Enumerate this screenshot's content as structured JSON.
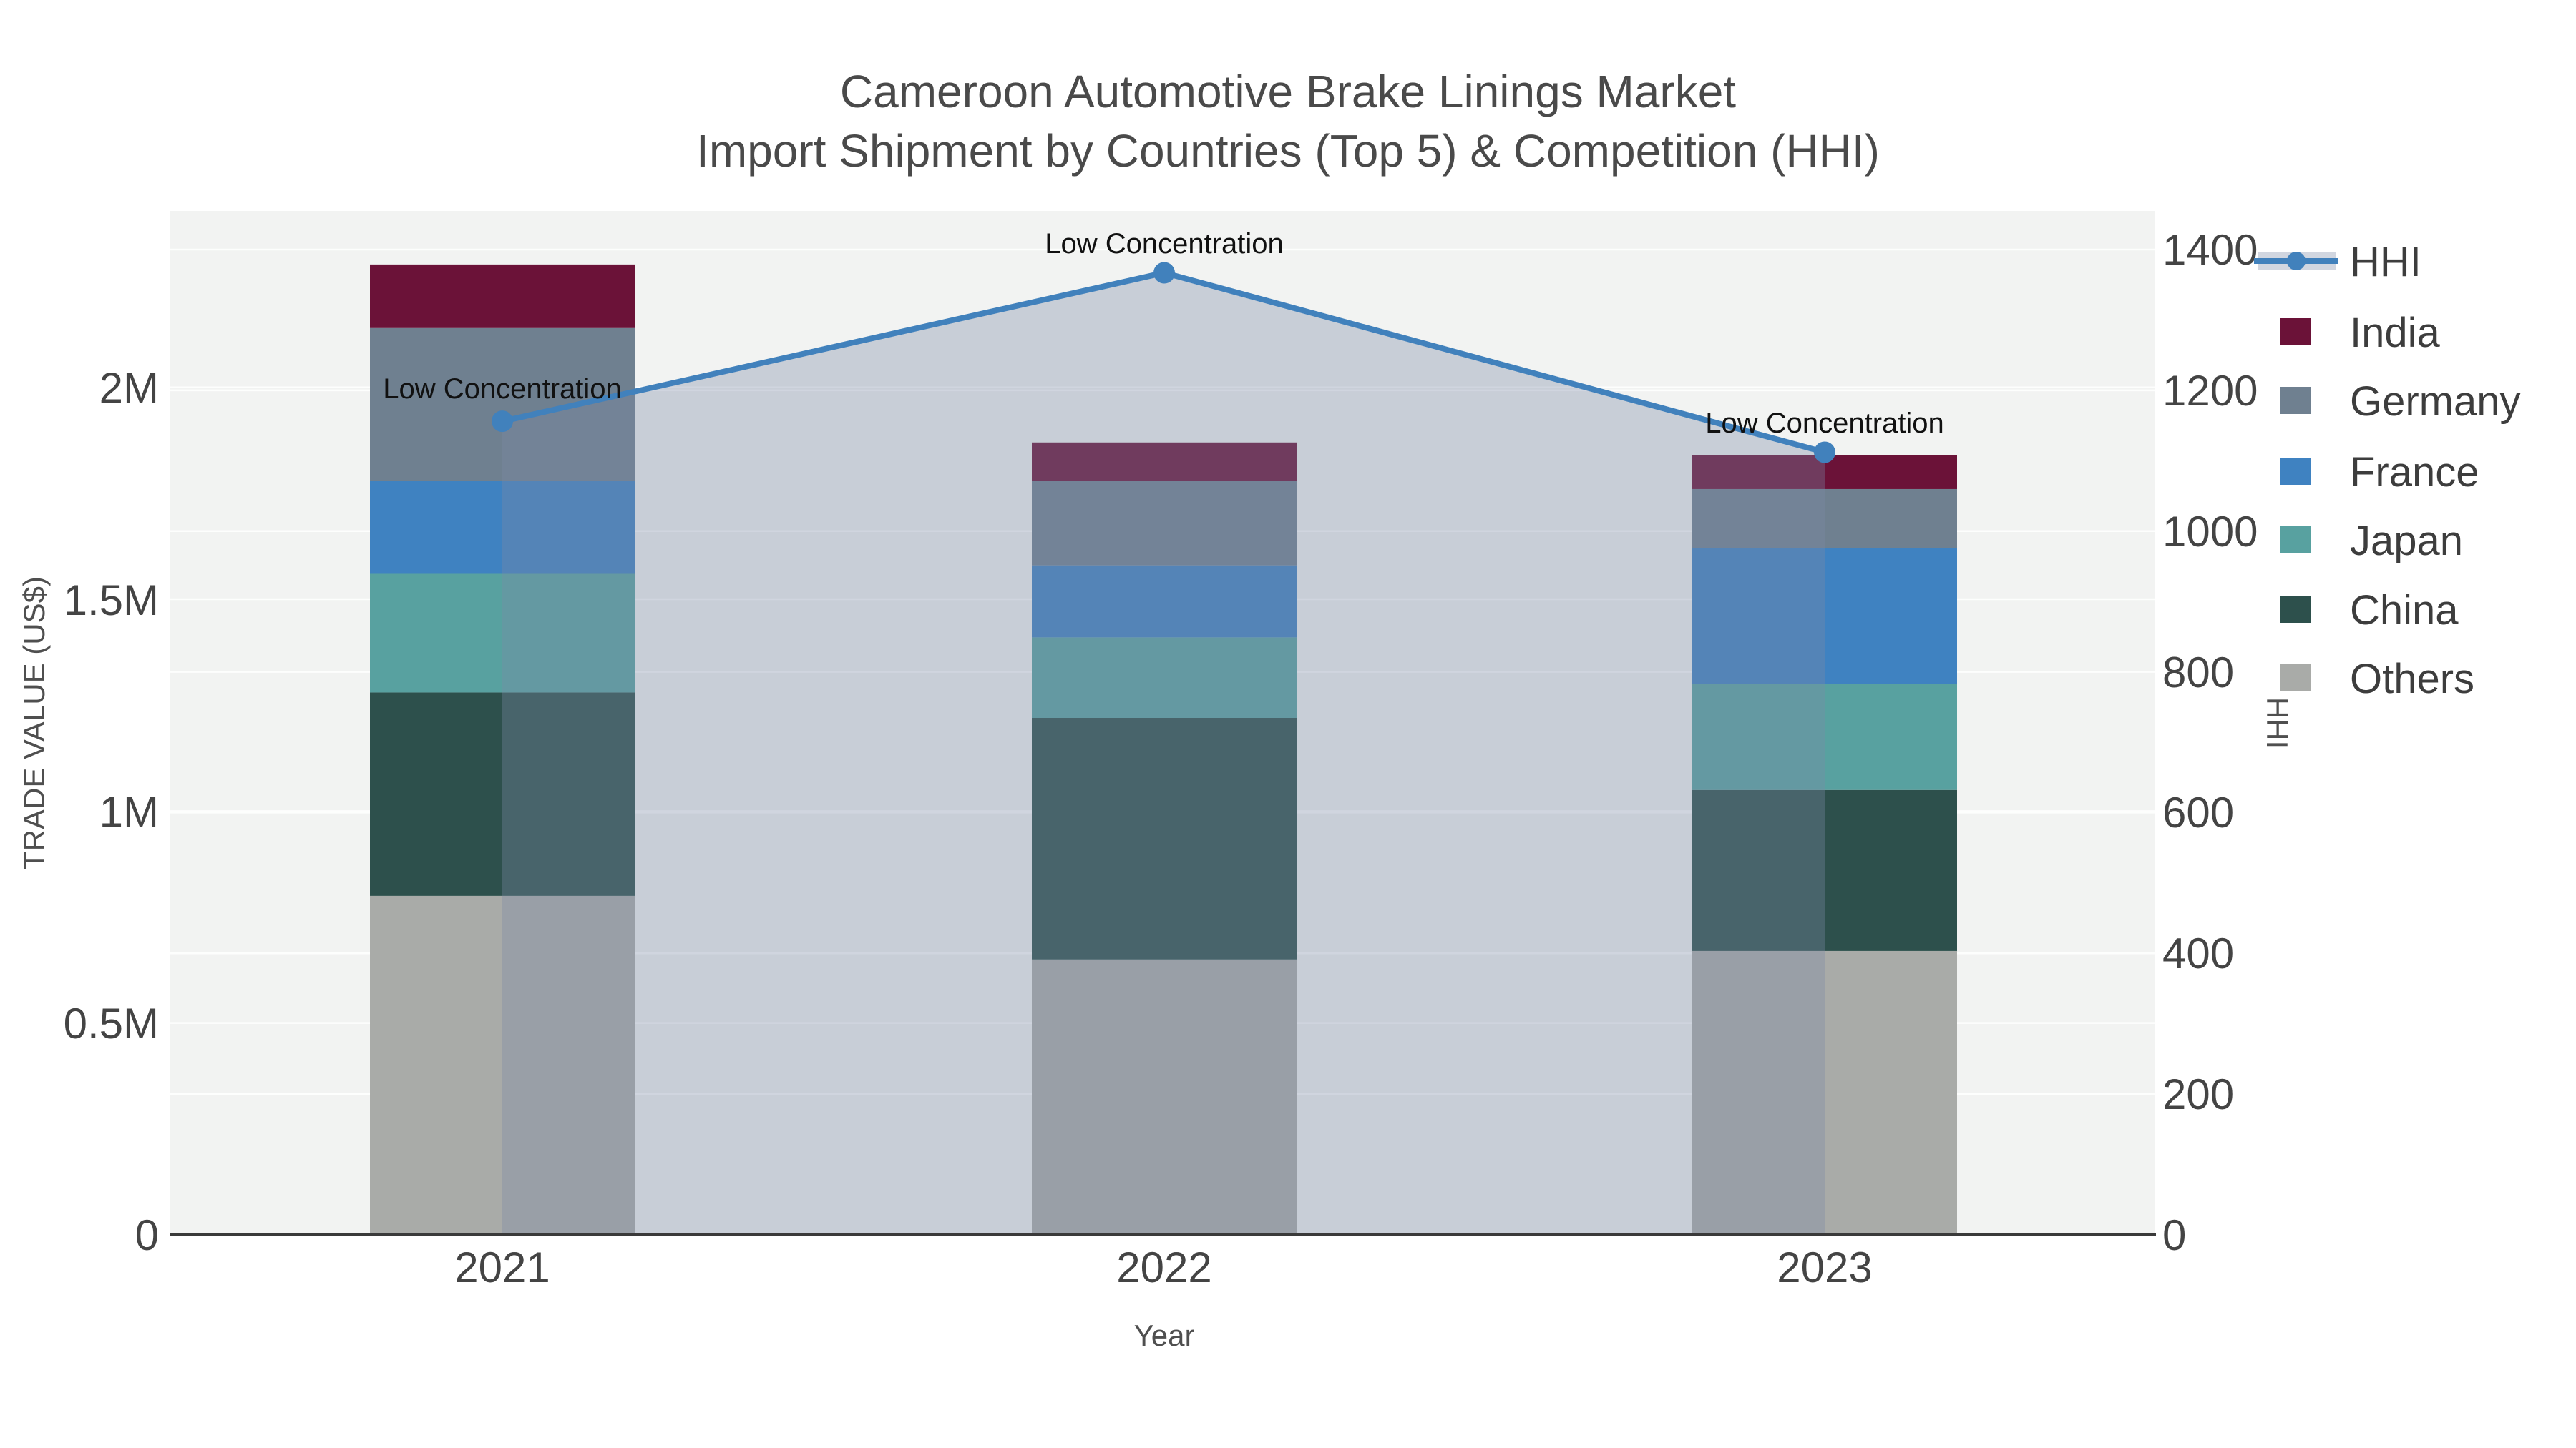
{
  "title": {
    "line1": "Cameroon Automotive Brake Linings Market",
    "line2": "Import Shipment by Countries (Top 5) & Competition (HHI)",
    "color": "#4a4a4a"
  },
  "axes": {
    "x": {
      "title": "Year",
      "tick_labels": [
        "2021",
        "2022",
        "2023"
      ]
    },
    "left": {
      "title": "TRADE VALUE (US$)",
      "tick_labels": [
        "0",
        "0.5M",
        "1M",
        "1.5M",
        "2M"
      ],
      "tick_values": [
        0,
        0.5,
        1,
        1.5,
        2
      ]
    },
    "right": {
      "title": "HHI",
      "tick_labels": [
        "0",
        "200",
        "400",
        "600",
        "800",
        "1000",
        "1200",
        "1400"
      ],
      "tick_values": [
        0,
        200,
        400,
        600,
        800,
        1000,
        1200,
        1400
      ]
    }
  },
  "legend": {
    "items": [
      "HHI",
      "India",
      "Germany",
      "France",
      "Japan",
      "China",
      "Others"
    ]
  },
  "annotations": [
    "Low Concentration",
    "Low Concentration",
    "Low Concentration"
  ],
  "chart_data": {
    "type": "combo: stacked bar (left axis) + line with area fill (right axis)",
    "title": "Cameroon Automotive Brake Linings Market — Import Shipment by Countries (Top 5) & Competition (HHI)",
    "categories": [
      "2021",
      "2022",
      "2023"
    ],
    "bar_value_unit": "trade value, millions US$ (left axis, estimated from gridlines)",
    "stack_order_bottom_to_top": [
      "Others",
      "China",
      "Japan",
      "France",
      "Germany",
      "India"
    ],
    "series": [
      {
        "name": "Others",
        "color": "#A9ABA8",
        "values": [
          0.8,
          0.65,
          0.67
        ]
      },
      {
        "name": "China",
        "color": "#2D504C",
        "values": [
          0.48,
          0.57,
          0.38
        ]
      },
      {
        "name": "Japan",
        "color": "#58A1A0",
        "values": [
          0.28,
          0.19,
          0.25
        ]
      },
      {
        "name": "France",
        "color": "#3F82C1",
        "values": [
          0.22,
          0.17,
          0.32
        ]
      },
      {
        "name": "Germany",
        "color": "#6F8090",
        "values": [
          0.36,
          0.2,
          0.14
        ]
      },
      {
        "name": "India",
        "color": "#6B1238",
        "values": [
          0.15,
          0.09,
          0.08
        ]
      }
    ],
    "bar_totals": [
      2.29,
      1.87,
      1.84
    ],
    "line_series": {
      "name": "HHI",
      "axis": "right",
      "values": [
        1156,
        1367,
        1112
      ],
      "color": "#4181BC",
      "marker": "circle",
      "area_fill": "rgba(122,137,166,0.35)"
    },
    "annotations_per_point": [
      "Low Concentration",
      "Low Concentration",
      "Low Concentration"
    ],
    "left_axis_range": [
      0,
      2.42
    ],
    "right_axis_range": [
      0,
      1455
    ],
    "grid": "horizontal white gridlines at ticks of both axes on light gray plot background",
    "plot_background": "#F2F3F2",
    "legend_position": "right",
    "xlabel": "Year",
    "ylabel_left": "TRADE VALUE (US$)",
    "ylabel_right": "HHI"
  }
}
